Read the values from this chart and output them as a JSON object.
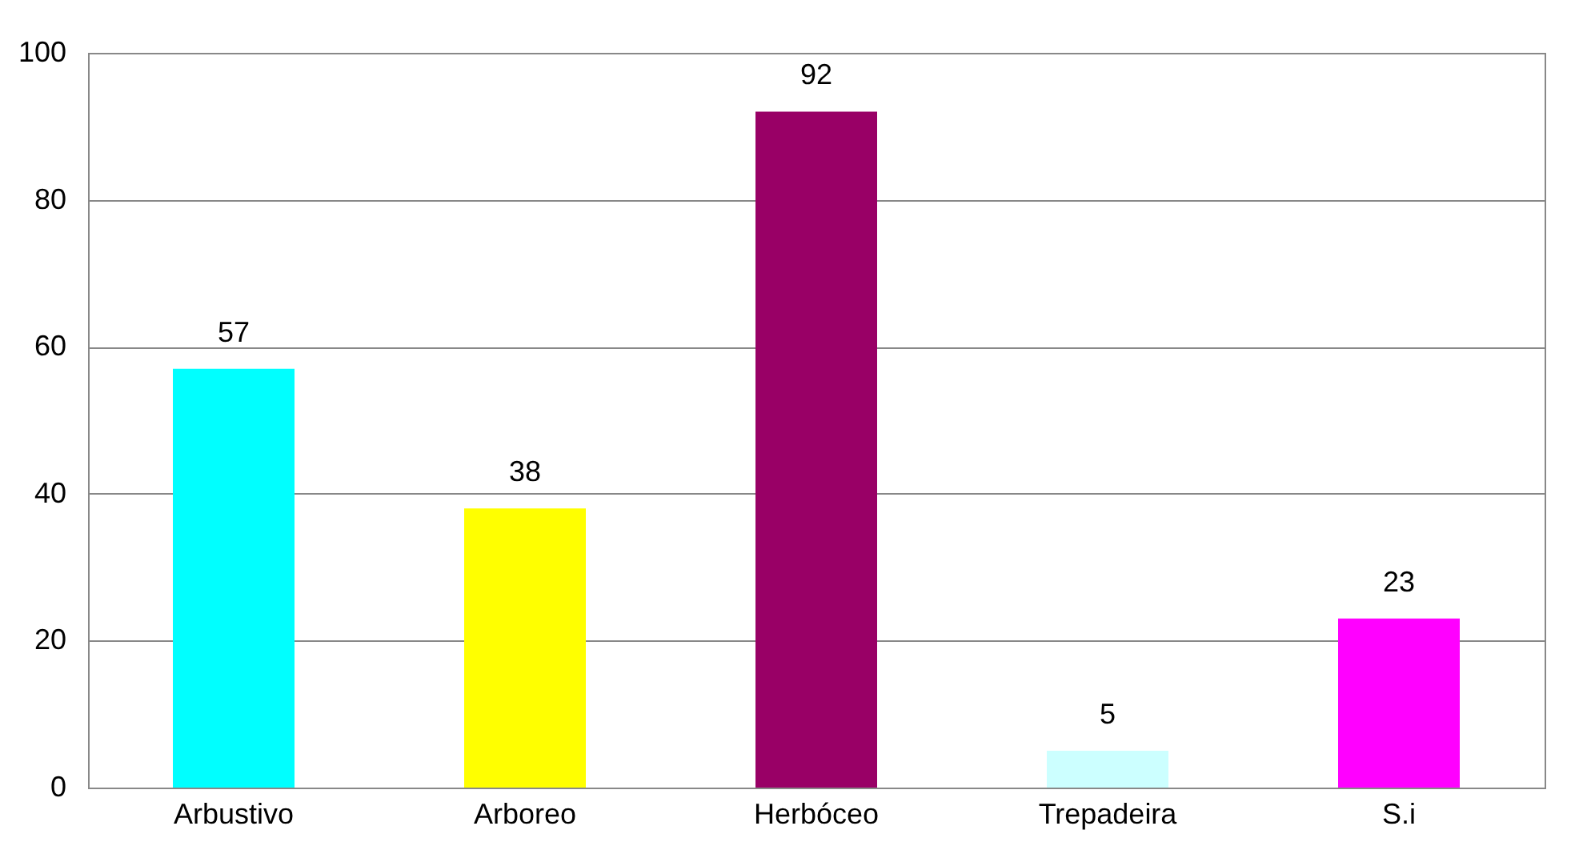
{
  "chart_data": {
    "type": "bar",
    "categories": [
      "Arbustivo",
      "Arboreo",
      "Herbóceo",
      "Trepadeira",
      "S.i"
    ],
    "values": [
      57,
      38,
      92,
      5,
      23
    ],
    "colors": [
      "#00ffff",
      "#ffff00",
      "#990066",
      "#ccffff",
      "#ff00ff"
    ],
    "ylim": [
      0,
      100
    ],
    "yticks": [
      0,
      20,
      40,
      60,
      80,
      100
    ],
    "grid": "y",
    "data_labels": true,
    "legend": false
  }
}
